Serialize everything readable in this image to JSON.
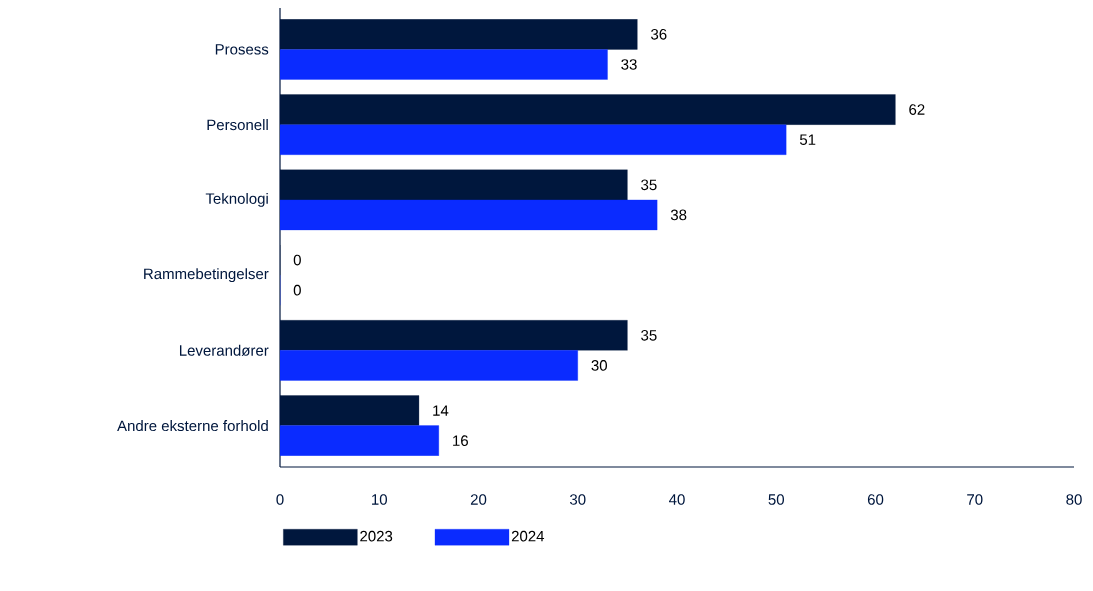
{
  "chart_data": {
    "type": "bar",
    "orientation": "horizontal",
    "categories": [
      "Prosess",
      "Personell",
      "Teknologi",
      "Rammebetingelser",
      "Leverandører",
      "Andre eksterne forhold"
    ],
    "series": [
      {
        "name": "2023",
        "color": "#00173d",
        "values": [
          36,
          62,
          35,
          0,
          35,
          14
        ]
      },
      {
        "name": "2024",
        "color": "#0a2bff",
        "values": [
          33,
          51,
          38,
          0,
          30,
          16
        ]
      }
    ],
    "xlim": [
      0,
      80
    ],
    "xticks": [
      0,
      10,
      20,
      30,
      40,
      50,
      60,
      70,
      80
    ],
    "data_labels": true,
    "grid": false,
    "legend": "bottom"
  }
}
